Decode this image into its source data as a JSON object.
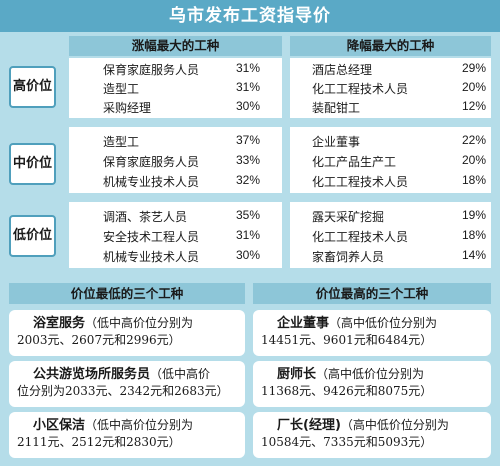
{
  "title": "乌市发布工资指导价",
  "columns": {
    "up": "涨幅最大的工种",
    "down": "降幅最大的工种"
  },
  "rows": [
    {
      "label": "高价位",
      "up": [
        {
          "name": "保育家庭服务人员",
          "pct": "31%"
        },
        {
          "name": "造型工",
          "pct": "31%"
        },
        {
          "name": "采购经理",
          "pct": "30%"
        }
      ],
      "down": [
        {
          "name": "酒店总经理",
          "pct": "29%"
        },
        {
          "name": "化工工程技术人员",
          "pct": "20%"
        },
        {
          "name": "装配钳工",
          "pct": "12%"
        }
      ]
    },
    {
      "label": "中价位",
      "up": [
        {
          "name": "造型工",
          "pct": "37%"
        },
        {
          "name": "保育家庭服务人员",
          "pct": "33%"
        },
        {
          "name": "机械专业技术人员",
          "pct": "32%"
        }
      ],
      "down": [
        {
          "name": "企业董事",
          "pct": "22%"
        },
        {
          "name": "化工产品生产工",
          "pct": "20%"
        },
        {
          "name": "化工工程技术人员",
          "pct": "18%"
        }
      ]
    },
    {
      "label": "低价位",
      "up": [
        {
          "name": "调酒、茶艺人员",
          "pct": "35%"
        },
        {
          "name": "安全技术工程人员",
          "pct": "31%"
        },
        {
          "name": "机械专业技术人员",
          "pct": "30%"
        }
      ],
      "down": [
        {
          "name": "露天采矿挖掘",
          "pct": "19%"
        },
        {
          "name": "化工工程技术人员",
          "pct": "18%"
        },
        {
          "name": "家畜饲养人员",
          "pct": "14%"
        }
      ]
    }
  ],
  "lowest": {
    "title": "价位最低的三个工种",
    "items": [
      {
        "name": "浴室服务",
        "l1": "（低中高价位分别为",
        "l2": "2003元、2607元和2996元）"
      },
      {
        "name": "公共游览场所服务员",
        "l1": "（低中高价",
        "l2": "位分别为2033元、2342元和2683元）"
      },
      {
        "name": "小区保洁",
        "l1": "（低中高价位分别为",
        "l2": "2111元、2512元和2830元）"
      }
    ]
  },
  "highest": {
    "title": "价位最高的三个工种",
    "items": [
      {
        "name": "企业董事",
        "l1": "（高中低价位分别为",
        "l2": "14451元、9601元和6484元）"
      },
      {
        "name": "厨师长",
        "l1": "（高中低价位分别为",
        "l2": "11368元、9426元和8075元）"
      },
      {
        "name": "厂长(经理)",
        "l1": "（高中低价位分别为",
        "l2": "10584元、7335元和5093元）"
      }
    ]
  }
}
